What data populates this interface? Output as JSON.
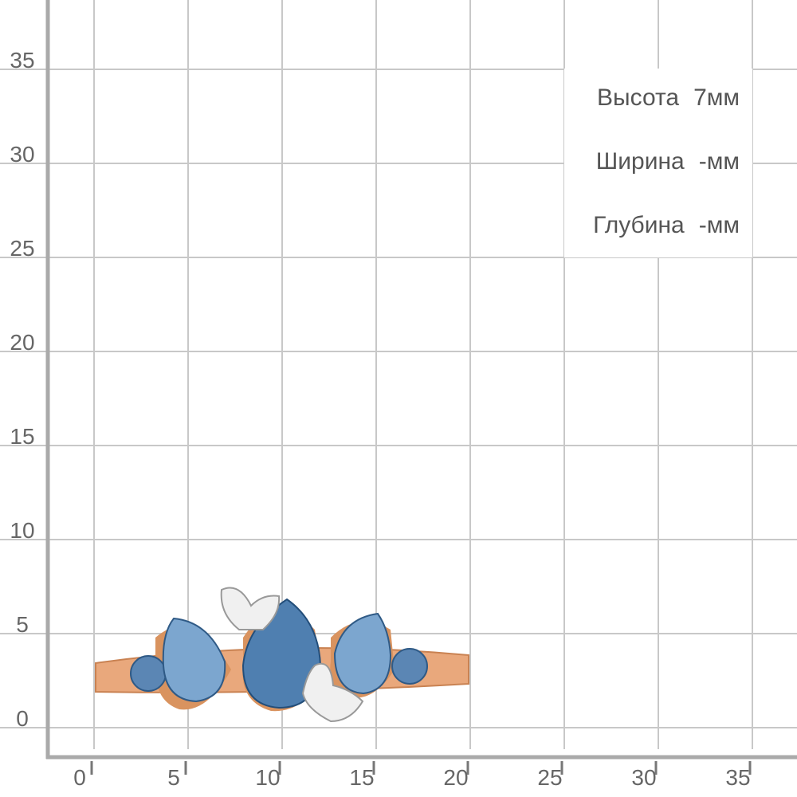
{
  "y_axis": {
    "labels": [
      "35",
      "30",
      "25",
      "20",
      "15",
      "10",
      "5",
      "0"
    ]
  },
  "x_axis": {
    "labels": [
      "0",
      "5",
      "10",
      "15",
      "20",
      "25",
      "30",
      "35"
    ]
  },
  "dimensions": [
    {
      "label": "Высота",
      "value": "7мм"
    },
    {
      "label": "Ширина",
      "value": "-мм"
    },
    {
      "label": "Глубина",
      "value": "-мм"
    }
  ]
}
